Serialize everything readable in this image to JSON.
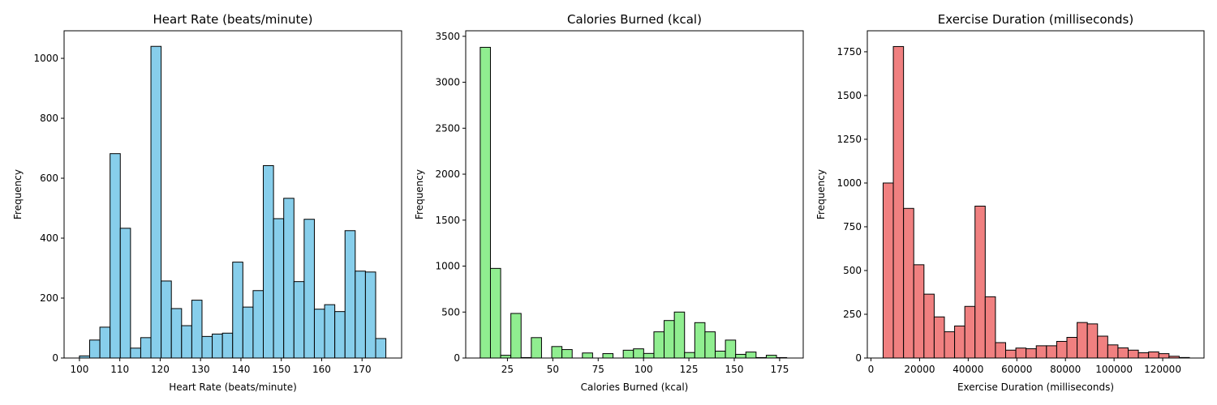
{
  "chart_data": [
    {
      "type": "bar",
      "title": "Heart Rate (beats/minute)",
      "xlabel": "Heart Rate (beats/minute)",
      "ylabel": "Frequency",
      "color": "#87ceeb",
      "xlim": [
        96.2,
        179.8
      ],
      "ylim": [
        0,
        1092
      ],
      "xticks": [
        100,
        110,
        120,
        130,
        140,
        150,
        160,
        170
      ],
      "yticks": [
        0,
        200,
        400,
        600,
        800,
        1000
      ],
      "bin_start": 100,
      "bin_width": 2.53,
      "values": [
        7,
        60,
        103,
        682,
        433,
        33,
        68,
        1040,
        257,
        165,
        108,
        193,
        72,
        80,
        83,
        320,
        170,
        225,
        642,
        465,
        533,
        255,
        463,
        163,
        178,
        155,
        425,
        290,
        287,
        65
      ]
    },
    {
      "type": "bar",
      "title": "Calories Burned (kcal)",
      "xlabel": "Calories Burned (kcal)",
      "ylabel": "Frequency",
      "color": "#90ee90",
      "xlim": [
        2.0,
        188.0
      ],
      "ylim": [
        0,
        3560
      ],
      "xticks": [
        25,
        50,
        75,
        100,
        125,
        150,
        175
      ],
      "yticks": [
        0,
        500,
        1000,
        1500,
        2000,
        2500,
        3000,
        3500
      ],
      "bin_start": 10,
      "bin_width": 5.63,
      "values": [
        3380,
        975,
        30,
        485,
        5,
        222,
        0,
        125,
        92,
        0,
        55,
        0,
        48,
        0,
        85,
        100,
        50,
        285,
        408,
        500,
        60,
        385,
        285,
        75,
        195,
        40,
        65,
        5,
        30,
        5
      ]
    },
    {
      "type": "bar",
      "title": "Exercise Duration (milliseconds)",
      "xlabel": "Exercise Duration (milliseconds)",
      "ylabel": "Frequency",
      "color": "#f08080",
      "xlim": [
        -1500,
        137000
      ],
      "ylim": [
        0,
        1870
      ],
      "xticks": [
        0,
        20000,
        40000,
        60000,
        80000,
        100000,
        120000
      ],
      "yticks": [
        0,
        250,
        500,
        750,
        1000,
        1250,
        1500,
        1750
      ],
      "bin_start": 5000,
      "bin_width": 4200,
      "values": [
        1000,
        1780,
        855,
        533,
        365,
        235,
        150,
        183,
        295,
        868,
        350,
        88,
        45,
        57,
        53,
        70,
        70,
        95,
        118,
        203,
        195,
        125,
        75,
        58,
        45,
        30,
        35,
        25,
        10,
        3
      ]
    }
  ]
}
